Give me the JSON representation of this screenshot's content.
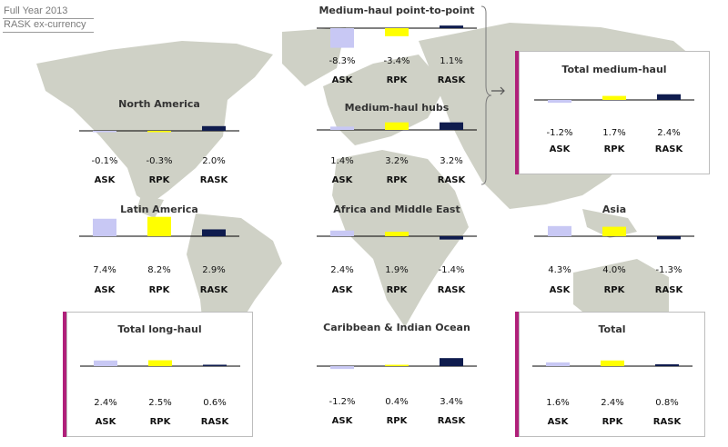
{
  "header": {
    "line1": "Full Year 2013",
    "line2": "RASK ex-currency"
  },
  "colors": {
    "ASK": "#c8c8f4",
    "RPK": "#ffff00",
    "RASK": "#0f1c4e",
    "baseline": "#000000",
    "accent": "#b0207a",
    "map": "#cfd1c6"
  },
  "chart_data": [
    {
      "type": "bar",
      "title": "Medium-haul point-to-point",
      "categories": [
        "ASK",
        "RPK",
        "RASK"
      ],
      "values": [
        -8.3,
        -3.4,
        1.1
      ],
      "labels": [
        "-8.3%",
        "-3.4%",
        "1.1%"
      ]
    },
    {
      "type": "bar",
      "title": "North America",
      "categories": [
        "ASK",
        "RPK",
        "RASK"
      ],
      "values": [
        -0.1,
        -0.3,
        2.0
      ],
      "labels": [
        "-0.1%",
        "-0.3%",
        "2.0%"
      ]
    },
    {
      "type": "bar",
      "title": "Medium-haul hubs",
      "categories": [
        "ASK",
        "RPK",
        "RASK"
      ],
      "values": [
        1.4,
        3.2,
        3.2
      ],
      "labels": [
        "1.4%",
        "3.2%",
        "3.2%"
      ]
    },
    {
      "type": "bar",
      "title": "Total medium-haul",
      "categories": [
        "ASK",
        "RPK",
        "RASK"
      ],
      "values": [
        -1.2,
        1.7,
        2.4
      ],
      "labels": [
        "-1.2%",
        "1.7%",
        "2.4%"
      ]
    },
    {
      "type": "bar",
      "title": "Latin America",
      "categories": [
        "ASK",
        "RPK",
        "RASK"
      ],
      "values": [
        7.4,
        8.2,
        2.9
      ],
      "labels": [
        "7.4%",
        "8.2%",
        "2.9%"
      ]
    },
    {
      "type": "bar",
      "title": "Africa and Middle East",
      "categories": [
        "ASK",
        "RPK",
        "RASK"
      ],
      "values": [
        2.4,
        1.9,
        -1.4
      ],
      "labels": [
        "2.4%",
        "1.9%",
        "-1.4%"
      ]
    },
    {
      "type": "bar",
      "title": "Asia",
      "categories": [
        "ASK",
        "RPK",
        "RASK"
      ],
      "values": [
        4.3,
        4.0,
        -1.3
      ],
      "labels": [
        "4.3%",
        "4.0%",
        "-1.3%"
      ]
    },
    {
      "type": "bar",
      "title": "Total long-haul",
      "categories": [
        "ASK",
        "RPK",
        "RASK"
      ],
      "values": [
        2.4,
        2.5,
        0.6
      ],
      "labels": [
        "2.4%",
        "2.5%",
        "0.6%"
      ]
    },
    {
      "type": "bar",
      "title": "Caribbean & Indian Ocean",
      "categories": [
        "ASK",
        "RPK",
        "RASK"
      ],
      "values": [
        -1.2,
        0.4,
        3.4
      ],
      "labels": [
        "-1.2%",
        "0.4%",
        "3.4%"
      ]
    },
    {
      "type": "bar",
      "title": "Total",
      "categories": [
        "ASK",
        "RPK",
        "RASK"
      ],
      "values": [
        1.6,
        2.4,
        0.8
      ],
      "labels": [
        "1.6%",
        "2.4%",
        "0.8%"
      ]
    }
  ]
}
